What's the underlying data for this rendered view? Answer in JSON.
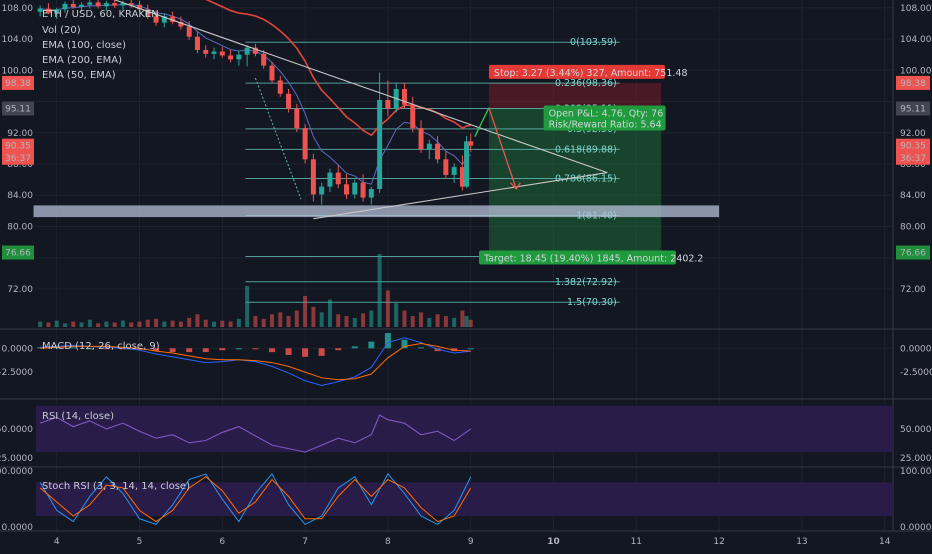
{
  "header": {
    "symbol": "ETH / USD, 60, KRAKEN",
    "indicators": [
      "Vol (20)",
      "EMA (100, close)",
      "EMA (200, EMA)",
      "EMA (50, EMA)"
    ]
  },
  "colors": {
    "bg": "#131722",
    "grid": "#1e2230",
    "up": "#26a69a",
    "down": "#ef5350",
    "fib": "#5fb8b0",
    "fib_text": "#7fd6cf",
    "ema200": "#e2463a",
    "triangle": "#c8c8c8",
    "support": "#b6bfd8",
    "rsi_band": "#2a1c48",
    "profit": "#1f7a3c",
    "stop": "#8b1f2a"
  },
  "chart_data": [
    {
      "id": "price",
      "type": "candlestick",
      "title": "ETH / USD, 60, KRAKEN",
      "ylim": [
        67,
        109
      ],
      "yticks": [
        72,
        76,
        80,
        84,
        88,
        92,
        96,
        100,
        104,
        108
      ],
      "ytick_labels": [
        "72.00",
        "",
        "80.00",
        "84.00",
        "88.00",
        "92.00",
        "",
        "100.00",
        "104.00",
        "108.00"
      ],
      "xlim": [
        3.75,
        14.1
      ],
      "xticks": [
        4,
        5,
        6,
        7,
        8,
        9,
        10,
        11,
        12,
        13,
        14
      ],
      "xtick_labels": [
        "4",
        "5",
        "6",
        "7",
        "8",
        "9",
        "10",
        "11",
        "12",
        "13",
        "14"
      ],
      "price_tags": [
        {
          "value": 98.38,
          "label": "98.38",
          "color": "#ef5350"
        },
        {
          "value": 95.11,
          "label": "95.11",
          "color": "#434651"
        },
        {
          "value": 90.35,
          "label": "90.35",
          "color": "#ef5350"
        },
        {
          "value": 88.8,
          "label": "36:37",
          "color": "#ef5350"
        },
        {
          "value": 76.66,
          "label": "76.66",
          "color": "#1f8f3b"
        }
      ],
      "fib_levels": [
        {
          "level": "0",
          "value": 103.59,
          "label": "0(103.59)"
        },
        {
          "level": "0.236",
          "value": 98.36,
          "label": "0.236(98.36)"
        },
        {
          "level": "0.382",
          "value": 95.11,
          "label": "0.382(95.11)"
        },
        {
          "level": "0.5",
          "value": 92.5,
          "label": "0.5(92.50)"
        },
        {
          "level": "0.618",
          "value": 89.88,
          "label": "0.618(89.88)"
        },
        {
          "level": "0.786",
          "value": 86.15,
          "label": "0.786(86.15)"
        },
        {
          "level": "1",
          "value": 81.4,
          "label": "1(81.40)"
        },
        {
          "level": "1.236",
          "value": 76.16,
          "label": "1.236(76.16)"
        },
        {
          "level": "1.382",
          "value": 72.92,
          "label": "1.382(72.92)"
        },
        {
          "level": "1.5",
          "value": 70.3,
          "label": "1.5(70.30)"
        }
      ],
      "position": {
        "entry": 95.11,
        "stop": 98.38,
        "target": 76.66,
        "stop_label": "Stop: 3.27 (3.44%) 327, Amount: 751.48",
        "pnl_label": "Open P&L: 4.76, Qty: 76",
        "rr_label": "Risk/Reward Ratio: 5.64",
        "target_label": "Target: 18.45 (19.40%) 1845, Amount: 2402.2"
      },
      "support_zone": [
        81.2,
        82.7
      ],
      "candles": [
        [
          3.8,
          107.5,
          108.3,
          106.9,
          107.9
        ],
        [
          3.9,
          107.9,
          108.6,
          107.2,
          107.3
        ],
        [
          4.0,
          107.3,
          108.0,
          106.6,
          107.8
        ],
        [
          4.1,
          107.8,
          108.8,
          107.4,
          108.5
        ],
        [
          4.2,
          108.5,
          109.0,
          107.9,
          108.1
        ],
        [
          4.3,
          108.1,
          108.7,
          107.5,
          108.4
        ],
        [
          4.4,
          108.4,
          109.0,
          107.9,
          108.7
        ],
        [
          4.5,
          108.7,
          109.0,
          107.9,
          108.2
        ],
        [
          4.6,
          108.2,
          108.9,
          107.6,
          108.6
        ],
        [
          4.7,
          108.6,
          109.0,
          108.0,
          108.3
        ],
        [
          4.8,
          108.3,
          108.9,
          107.7,
          108.6
        ],
        [
          4.9,
          108.6,
          109.0,
          108.0,
          108.4
        ],
        [
          5.0,
          108.4,
          108.9,
          107.5,
          107.8
        ],
        [
          5.1,
          107.8,
          108.4,
          106.6,
          106.9
        ],
        [
          5.2,
          106.9,
          107.6,
          105.7,
          106.1
        ],
        [
          5.3,
          106.1,
          107.3,
          105.5,
          106.9
        ],
        [
          5.4,
          106.9,
          107.5,
          105.9,
          106.2
        ],
        [
          5.5,
          106.2,
          106.9,
          105.2,
          105.6
        ],
        [
          5.6,
          105.6,
          106.3,
          103.9,
          104.3
        ],
        [
          5.7,
          104.3,
          105.0,
          102.2,
          102.6
        ],
        [
          5.8,
          102.6,
          103.2,
          101.6,
          102.1
        ],
        [
          5.9,
          102.1,
          102.9,
          101.4,
          102.4
        ],
        [
          6.0,
          102.4,
          103.0,
          101.6,
          101.9
        ],
        [
          6.1,
          101.9,
          102.6,
          101.0,
          101.4
        ],
        [
          6.2,
          101.4,
          102.5,
          100.6,
          102.0
        ],
        [
          6.3,
          102.0,
          103.2,
          100.5,
          102.9
        ],
        [
          6.4,
          102.9,
          103.4,
          101.8,
          102.1
        ],
        [
          6.5,
          102.1,
          102.6,
          100.2,
          100.6
        ],
        [
          6.6,
          100.6,
          101.1,
          98.3,
          98.7
        ],
        [
          6.7,
          98.7,
          99.3,
          96.6,
          97.0
        ],
        [
          6.8,
          97.0,
          97.6,
          94.6,
          95.1
        ],
        [
          6.9,
          95.1,
          95.7,
          92.1,
          92.6
        ],
        [
          7.0,
          92.6,
          93.1,
          88.1,
          88.6
        ],
        [
          7.1,
          88.6,
          89.3,
          83.2,
          84.1
        ],
        [
          7.2,
          84.1,
          85.6,
          82.8,
          85.1
        ],
        [
          7.3,
          85.1,
          87.4,
          84.4,
          86.9
        ],
        [
          7.4,
          86.9,
          87.8,
          84.9,
          85.4
        ],
        [
          7.5,
          85.4,
          86.7,
          83.5,
          84.1
        ],
        [
          7.6,
          84.1,
          86.0,
          83.6,
          85.6
        ],
        [
          7.7,
          85.6,
          86.7,
          83.2,
          83.7
        ],
        [
          7.8,
          83.7,
          85.1,
          82.8,
          84.8
        ],
        [
          7.9,
          84.8,
          99.7,
          84.3,
          96.2
        ],
        [
          8.0,
          96.2,
          98.7,
          94.1,
          95.1
        ],
        [
          8.1,
          95.1,
          98.3,
          94.6,
          97.6
        ],
        [
          8.2,
          97.6,
          98.4,
          95.1,
          95.6
        ],
        [
          8.3,
          95.6,
          96.6,
          92.1,
          92.6
        ],
        [
          8.4,
          92.6,
          93.6,
          89.4,
          89.9
        ],
        [
          8.5,
          89.9,
          91.1,
          88.6,
          90.6
        ],
        [
          8.6,
          90.6,
          91.6,
          88.1,
          88.6
        ],
        [
          8.7,
          88.6,
          89.6,
          86.1,
          86.6
        ],
        [
          8.8,
          86.6,
          88.1,
          85.6,
          87.6
        ],
        [
          8.9,
          87.6,
          89.1,
          84.6,
          85.1
        ],
        [
          8.95,
          85.1,
          91.6,
          84.9,
          90.9
        ],
        [
          9.0,
          90.9,
          91.9,
          89.6,
          90.35
        ]
      ],
      "volumes": [
        [
          3.8,
          6
        ],
        [
          3.9,
          5
        ],
        [
          4.0,
          7
        ],
        [
          4.1,
          4
        ],
        [
          4.2,
          6
        ],
        [
          4.3,
          5
        ],
        [
          4.4,
          8
        ],
        [
          4.5,
          4
        ],
        [
          4.6,
          6
        ],
        [
          4.7,
          5
        ],
        [
          4.8,
          7
        ],
        [
          4.9,
          5
        ],
        [
          5.0,
          6
        ],
        [
          5.1,
          8
        ],
        [
          5.2,
          9
        ],
        [
          5.3,
          6
        ],
        [
          5.4,
          7
        ],
        [
          5.5,
          6
        ],
        [
          5.6,
          10
        ],
        [
          5.7,
          14
        ],
        [
          5.8,
          8
        ],
        [
          5.9,
          6
        ],
        [
          6.0,
          7
        ],
        [
          6.1,
          6
        ],
        [
          6.2,
          9
        ],
        [
          6.3,
          45
        ],
        [
          6.4,
          12
        ],
        [
          6.5,
          9
        ],
        [
          6.6,
          14
        ],
        [
          6.7,
          16
        ],
        [
          6.8,
          12
        ],
        [
          6.9,
          18
        ],
        [
          7.0,
          34
        ],
        [
          7.1,
          22
        ],
        [
          7.2,
          16
        ],
        [
          7.3,
          30
        ],
        [
          7.4,
          14
        ],
        [
          7.5,
          12
        ],
        [
          7.6,
          10
        ],
        [
          7.7,
          15
        ],
        [
          7.8,
          18
        ],
        [
          7.9,
          80
        ],
        [
          8.0,
          40
        ],
        [
          8.1,
          26
        ],
        [
          8.2,
          18
        ],
        [
          8.3,
          12
        ],
        [
          8.4,
          16
        ],
        [
          8.5,
          10
        ],
        [
          8.6,
          14
        ],
        [
          8.7,
          12
        ],
        [
          8.8,
          10
        ],
        [
          8.9,
          18
        ],
        [
          8.95,
          12
        ],
        [
          9.0,
          8
        ]
      ]
    },
    {
      "id": "macd",
      "type": "histogram-line",
      "title": "MACD (12, 26, close, 9)",
      "ylim": [
        -4.8,
        1.5
      ],
      "yticks": [
        0,
        -2.5
      ],
      "ytick_labels": [
        "0.0000",
        "-2.5000"
      ],
      "x": [
        3.8,
        4.0,
        4.2,
        4.4,
        4.6,
        4.8,
        5.0,
        5.2,
        5.4,
        5.6,
        5.8,
        6.0,
        6.2,
        6.4,
        6.6,
        6.8,
        7.0,
        7.2,
        7.4,
        7.6,
        7.8,
        8.0,
        8.2,
        8.4,
        8.6,
        8.8,
        9.0
      ],
      "macd": [
        0.1,
        0.2,
        0.3,
        0.2,
        0.1,
        0.0,
        -0.2,
        -0.6,
        -0.9,
        -1.2,
        -1.5,
        -1.4,
        -1.2,
        -1.4,
        -1.9,
        -2.6,
        -3.4,
        -3.9,
        -3.5,
        -3.0,
        -2.0,
        0.6,
        1.1,
        0.6,
        -0.1,
        -0.5,
        -0.3
      ],
      "signal": [
        0.0,
        0.1,
        0.2,
        0.2,
        0.2,
        0.1,
        0.0,
        -0.3,
        -0.5,
        -0.8,
        -1.1,
        -1.2,
        -1.2,
        -1.3,
        -1.5,
        -1.9,
        -2.5,
        -3.1,
        -3.3,
        -3.2,
        -2.7,
        -1.0,
        0.2,
        0.5,
        0.2,
        -0.2,
        -0.3
      ],
      "hist": [
        0.1,
        0.1,
        0.1,
        0.0,
        -0.1,
        -0.1,
        -0.2,
        -0.3,
        -0.4,
        -0.4,
        -0.4,
        -0.2,
        0.0,
        -0.1,
        -0.4,
        -0.7,
        -0.9,
        -0.8,
        -0.2,
        0.2,
        0.7,
        1.6,
        0.9,
        0.1,
        -0.3,
        -0.3,
        0.0
      ]
    },
    {
      "id": "rsi",
      "type": "line",
      "title": "RSI (14, close)",
      "ylim": [
        18,
        75
      ],
      "band": [
        30,
        70
      ],
      "yticks": [
        50,
        25
      ],
      "ytick_labels": [
        "50.0000",
        "25.0000"
      ],
      "x": [
        3.8,
        4.0,
        4.2,
        4.4,
        4.6,
        4.8,
        5.0,
        5.2,
        5.4,
        5.6,
        5.8,
        6.0,
        6.2,
        6.4,
        6.6,
        6.8,
        7.0,
        7.2,
        7.4,
        7.6,
        7.8,
        7.9,
        8.0,
        8.2,
        8.4,
        8.6,
        8.8,
        9.0
      ],
      "values": [
        55,
        60,
        52,
        57,
        50,
        55,
        48,
        42,
        45,
        38,
        40,
        47,
        52,
        44,
        36,
        33,
        30,
        36,
        42,
        38,
        45,
        62,
        58,
        55,
        45,
        48,
        40,
        50
      ]
    },
    {
      "id": "stoch",
      "type": "line",
      "title": "Stoch RSI (3, 3, 14, 14, close)",
      "ylim": [
        -5,
        102
      ],
      "band": [
        20,
        80
      ],
      "yticks": [
        100,
        0
      ],
      "ytick_labels": [
        "100.0000",
        "0.0000"
      ],
      "x": [
        3.8,
        4.0,
        4.2,
        4.4,
        4.6,
        4.8,
        5.0,
        5.2,
        5.4,
        5.6,
        5.8,
        6.0,
        6.2,
        6.4,
        6.6,
        6.8,
        7.0,
        7.2,
        7.4,
        7.6,
        7.8,
        8.0,
        8.2,
        8.4,
        8.6,
        8.8,
        9.0
      ],
      "k": [
        80,
        30,
        10,
        55,
        90,
        60,
        15,
        5,
        40,
        85,
        95,
        50,
        10,
        60,
        95,
        40,
        5,
        20,
        70,
        90,
        40,
        95,
        60,
        20,
        5,
        30,
        90
      ],
      "d": [
        70,
        45,
        20,
        40,
        75,
        70,
        30,
        10,
        30,
        70,
        90,
        65,
        25,
        45,
        85,
        55,
        15,
        15,
        55,
        85,
        55,
        85,
        70,
        35,
        10,
        20,
        70
      ]
    }
  ]
}
